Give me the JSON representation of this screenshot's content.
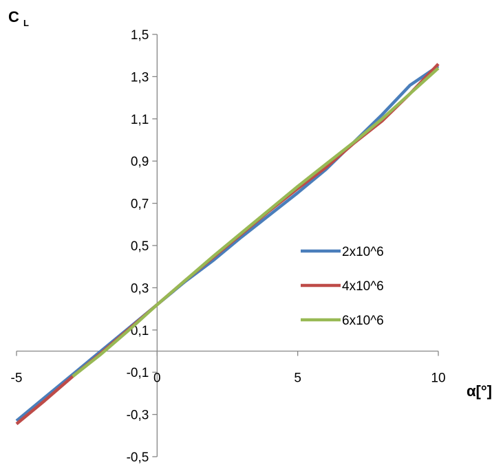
{
  "chart_data": {
    "type": "line",
    "title": "",
    "xlabel": "α[°]",
    "ylabel_main": "C",
    "ylabel_sub": "L",
    "xlim": [
      -5,
      10
    ],
    "ylim": [
      -0.5,
      1.5
    ],
    "xticks": [
      -5,
      0,
      5,
      10
    ],
    "xtick_labels": [
      "-5",
      "0",
      "5",
      "10"
    ],
    "yticks": [
      -0.5,
      -0.3,
      -0.1,
      0.1,
      0.3,
      0.5,
      0.7,
      0.9,
      1.1,
      1.3,
      1.5
    ],
    "ytick_labels": [
      "-0,5",
      "-0,3",
      "-0,1",
      "0,1",
      "0,3",
      "0,5",
      "0,7",
      "0,9",
      "1,1",
      "1,3",
      "1,5"
    ],
    "grid": false,
    "legend_position": "center-right",
    "series": [
      {
        "name": "2x10^6",
        "color": "#4A7EBB",
        "x": [
          -5,
          -4,
          -3,
          -2,
          -1,
          0,
          1,
          2,
          3,
          4,
          5,
          6,
          7,
          8,
          9,
          10
        ],
        "y": [
          -0.33,
          -0.22,
          -0.11,
          0.0,
          0.11,
          0.22,
          0.33,
          0.43,
          0.54,
          0.645,
          0.75,
          0.86,
          0.99,
          1.12,
          1.26,
          1.35
        ]
      },
      {
        "name": "4x10^6",
        "color": "#BE4B48",
        "x": [
          -5,
          -4,
          -3,
          -2,
          -1,
          0,
          1,
          2,
          3,
          4,
          5,
          6,
          7,
          8,
          9,
          10
        ],
        "y": [
          -0.345,
          -0.235,
          -0.12,
          -0.01,
          0.105,
          0.22,
          0.335,
          0.445,
          0.555,
          0.665,
          0.77,
          0.87,
          0.985,
          1.09,
          1.22,
          1.36
        ]
      },
      {
        "name": "6x10^6",
        "color": "#98B954",
        "x": [
          -3,
          -2,
          -1,
          0,
          1,
          2,
          3,
          4,
          5,
          6,
          7,
          8,
          9,
          10
        ],
        "y": [
          -0.12,
          -0.015,
          0.1,
          0.22,
          0.335,
          0.45,
          0.56,
          0.67,
          0.78,
          0.885,
          0.99,
          1.1,
          1.22,
          1.34
        ]
      }
    ]
  }
}
